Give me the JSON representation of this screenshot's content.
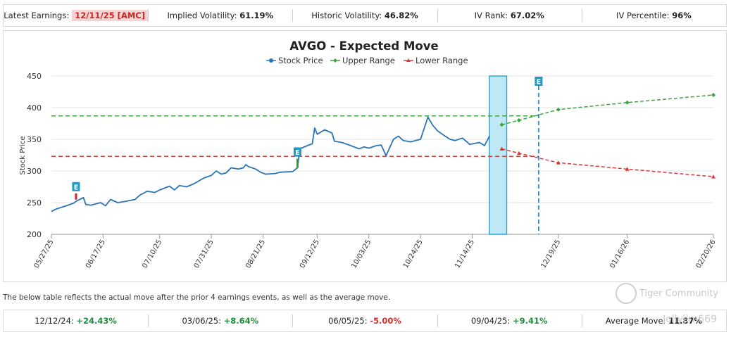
{
  "header": {
    "latest_earnings_label": "Latest Earnings:",
    "latest_earnings_value": "12/11/25 [AMC]",
    "implied_vol_label": "Implied Volatility:",
    "implied_vol_value": "61.19%",
    "historic_vol_label": "Historic Volatility:",
    "historic_vol_value": "46.82%",
    "iv_rank_label": "IV Rank:",
    "iv_rank_value": "67.02%",
    "iv_pct_label": "IV Percentile:",
    "iv_pct_value": "96%"
  },
  "chart_data": {
    "type": "line",
    "title": "AVGO - Expected Move",
    "ylabel": "Stock Price",
    "ylim": [
      200,
      450
    ],
    "yticks": [
      200,
      250,
      300,
      350,
      400,
      450
    ],
    "x_tick_labels": [
      "05/27/25",
      "06/17/25",
      "07/10/25",
      "07/31/25",
      "08/21/25",
      "09/12/25",
      "10/03/25",
      "10/24/25",
      "11/14/25",
      "12/19/25",
      "01/16/26",
      "02/20/26"
    ],
    "x_tick_dates": [
      "2025-05-27",
      "2025-06-17",
      "2025-07-10",
      "2025-07-31",
      "2025-08-21",
      "2025-09-12",
      "2025-10-03",
      "2025-10-24",
      "2025-11-14",
      "2025-12-19",
      "2026-01-16",
      "2026-02-20"
    ],
    "legend_position": "top-center",
    "series": [
      {
        "name": "Stock Price",
        "color": "#2b74b5",
        "marker": "circle",
        "points": [
          [
            "2025-05-27",
            236
          ],
          [
            "2025-05-29",
            240
          ],
          [
            "2025-06-02",
            245
          ],
          [
            "2025-06-05",
            249
          ],
          [
            "2025-06-06",
            252
          ],
          [
            "2025-06-09",
            258
          ],
          [
            "2025-06-10",
            247
          ],
          [
            "2025-06-12",
            246
          ],
          [
            "2025-06-16",
            250
          ],
          [
            "2025-06-18",
            245
          ],
          [
            "2025-06-20",
            255
          ],
          [
            "2025-06-23",
            250
          ],
          [
            "2025-06-26",
            252
          ],
          [
            "2025-06-30",
            255
          ],
          [
            "2025-07-02",
            262
          ],
          [
            "2025-07-05",
            268
          ],
          [
            "2025-07-08",
            266
          ],
          [
            "2025-07-10",
            270
          ],
          [
            "2025-07-14",
            276
          ],
          [
            "2025-07-16",
            270
          ],
          [
            "2025-07-18",
            277
          ],
          [
            "2025-07-21",
            275
          ],
          [
            "2025-07-24",
            280
          ],
          [
            "2025-07-28",
            289
          ],
          [
            "2025-07-31",
            293
          ],
          [
            "2025-08-02",
            300
          ],
          [
            "2025-08-04",
            295
          ],
          [
            "2025-08-06",
            297
          ],
          [
            "2025-08-08",
            305
          ],
          [
            "2025-08-11",
            303
          ],
          [
            "2025-08-13",
            305
          ],
          [
            "2025-08-14",
            310
          ],
          [
            "2025-08-15",
            307
          ],
          [
            "2025-08-18",
            303
          ],
          [
            "2025-08-20",
            298
          ],
          [
            "2025-08-22",
            295
          ],
          [
            "2025-08-26",
            296
          ],
          [
            "2025-08-28",
            298
          ],
          [
            "2025-09-02",
            299
          ],
          [
            "2025-09-04",
            305
          ],
          [
            "2025-09-05",
            335
          ],
          [
            "2025-09-08",
            340
          ],
          [
            "2025-09-10",
            343
          ],
          [
            "2025-09-11",
            368
          ],
          [
            "2025-09-12",
            358
          ],
          [
            "2025-09-15",
            365
          ],
          [
            "2025-09-18",
            360
          ],
          [
            "2025-09-19",
            347
          ],
          [
            "2025-09-22",
            345
          ],
          [
            "2025-09-25",
            341
          ],
          [
            "2025-09-29",
            335
          ],
          [
            "2025-10-01",
            338
          ],
          [
            "2025-10-03",
            336
          ],
          [
            "2025-10-06",
            340
          ],
          [
            "2025-10-08",
            341
          ],
          [
            "2025-10-10",
            324
          ],
          [
            "2025-10-13",
            350
          ],
          [
            "2025-10-15",
            355
          ],
          [
            "2025-10-17",
            348
          ],
          [
            "2025-10-20",
            346
          ],
          [
            "2025-10-22",
            348
          ],
          [
            "2025-10-24",
            350
          ],
          [
            "2025-10-27",
            385
          ],
          [
            "2025-10-29",
            372
          ],
          [
            "2025-10-31",
            363
          ],
          [
            "2025-11-03",
            355
          ],
          [
            "2025-11-05",
            350
          ],
          [
            "2025-11-07",
            348
          ],
          [
            "2025-11-10",
            352
          ],
          [
            "2025-11-13",
            342
          ],
          [
            "2025-11-17",
            345
          ],
          [
            "2025-11-19",
            340
          ],
          [
            "2025-11-21",
            355
          ]
        ]
      },
      {
        "name": "Upper Range",
        "color": "#3ea33e",
        "marker": "diamond",
        "points": [
          [
            "2025-11-26",
            373
          ],
          [
            "2025-12-03",
            380
          ],
          [
            "2025-12-19",
            397
          ],
          [
            "2026-01-16",
            408
          ],
          [
            "2026-02-20",
            420
          ]
        ]
      },
      {
        "name": "Lower Range",
        "color": "#d93a3a",
        "marker": "triangle",
        "points": [
          [
            "2025-11-26",
            335
          ],
          [
            "2025-12-03",
            328
          ],
          [
            "2025-12-19",
            313
          ],
          [
            "2026-01-16",
            303
          ],
          [
            "2026-02-20",
            291
          ]
        ]
      }
    ],
    "upper_hline": 387,
    "lower_hline": 323,
    "earnings_markers": [
      {
        "label": "E",
        "date": "2025-06-06",
        "color": "#d62728",
        "sign": "down"
      },
      {
        "label": "E",
        "date": "2025-09-04",
        "color": "#2ca02c",
        "sign": "up"
      },
      {
        "label": "E",
        "date": "2025-12-11",
        "color": "#1a7fb5",
        "sign": "future"
      }
    ],
    "highlight_band": {
      "start": "2025-11-21",
      "end": "2025-11-28",
      "color": "#bfe9f6"
    }
  },
  "table_note": "The below table reflects the actual move after the prior 4 earnings events, as well as the average move.",
  "moves": [
    {
      "date": "12/12/24:",
      "value": "+24.43%",
      "sign": "pos"
    },
    {
      "date": "03/06/25:",
      "value": "+8.64%",
      "sign": "pos"
    },
    {
      "date": "06/05/25:",
      "value": "-5.00%",
      "sign": "neg"
    },
    {
      "date": "09/04/25:",
      "value": "+9.41%",
      "sign": "pos"
    }
  ],
  "average_label": "Average Move:",
  "average_value": "11.87%",
  "watermark": {
    "brand": "Tiger Community",
    "user": "Jollyjim669"
  }
}
